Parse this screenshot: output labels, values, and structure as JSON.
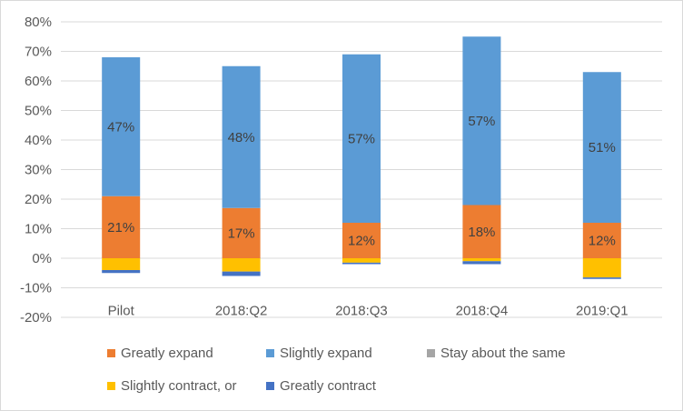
{
  "chart_data": {
    "type": "bar",
    "stacked": true,
    "categories": [
      "Pilot",
      "2018:Q2",
      "2018:Q3",
      "2018:Q4",
      "2019:Q1"
    ],
    "ylim": [
      -20,
      80
    ],
    "ytick_labels": [
      "-20%",
      "-10%",
      "0%",
      "10%",
      "20%",
      "30%",
      "40%",
      "50%",
      "60%",
      "70%",
      "80%"
    ],
    "grid": true,
    "legend_position": "bottom",
    "series": [
      {
        "name": "Greatly expand",
        "color": "#ED7D31",
        "values": [
          21,
          17,
          12,
          18,
          12
        ],
        "labels": [
          "21%",
          "17%",
          "12%",
          "18%",
          "12%"
        ]
      },
      {
        "name": "Slightly expand",
        "color": "#5B9BD5",
        "values": [
          47,
          48,
          57,
          57,
          51
        ],
        "labels": [
          "47%",
          "48%",
          "57%",
          "57%",
          "51%"
        ]
      },
      {
        "name": "Stay about the same",
        "color": "#A5A5A5",
        "values": [
          0,
          0,
          0,
          0,
          0
        ]
      },
      {
        "name": "Slightly contract, or",
        "color": "#FFC000",
        "values": [
          -4,
          -4.5,
          -1.5,
          -1,
          -6.5
        ]
      },
      {
        "name": "Greatly contract",
        "color": "#4472C4",
        "values": [
          -1,
          -1.5,
          -0.5,
          -1,
          -0.5
        ]
      }
    ]
  }
}
